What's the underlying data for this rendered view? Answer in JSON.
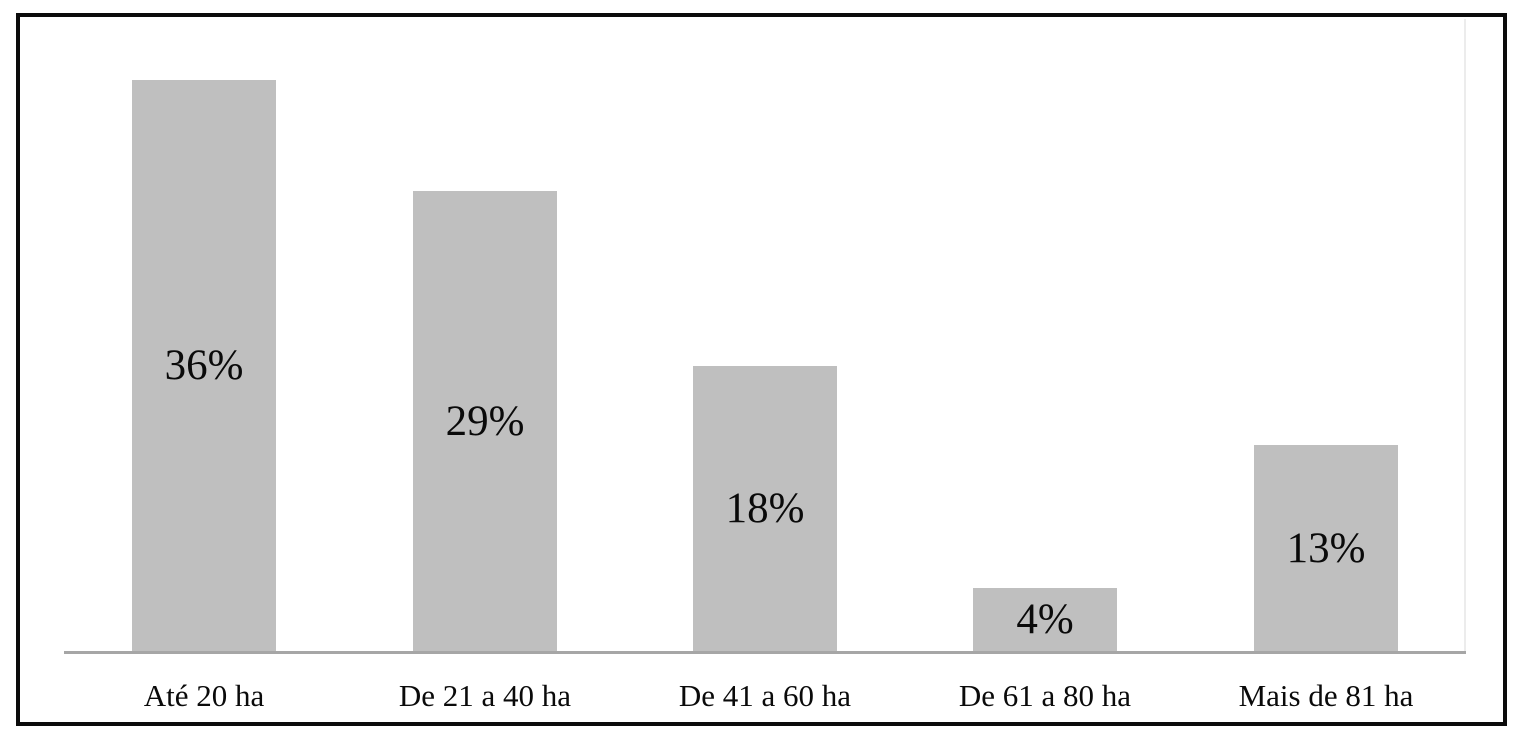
{
  "chart_data": {
    "type": "bar",
    "categories": [
      "Até 20 ha",
      "De 21 a 40 ha",
      "De 41 a 60 ha",
      "De 61 a 80 ha",
      "Mais de 81 ha"
    ],
    "values": [
      36,
      29,
      18,
      4,
      13
    ],
    "value_labels": [
      "36%",
      "29%",
      "18%",
      "4%",
      "13%"
    ],
    "title": "",
    "xlabel": "",
    "ylabel": "",
    "ylim": [
      0,
      40
    ],
    "grid": false,
    "legend": false,
    "label_position": "inside-center",
    "bar_color": "#bfbfbf",
    "axis_line_color": "#a6a6a6",
    "frame_border_color": "#0b0b0b",
    "text_color": "#0a0a0a",
    "background_color": "#ffffff"
  }
}
